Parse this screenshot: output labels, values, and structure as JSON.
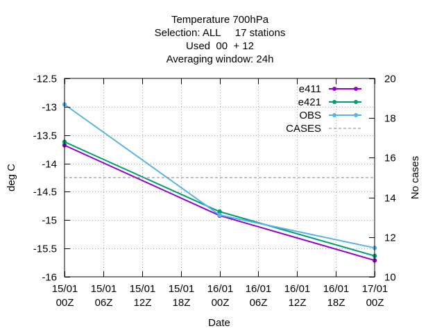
{
  "chart_data": {
    "type": "line",
    "title_lines": [
      "Temperature 700hPa",
      "Selection: ALL     17 stations",
      "Used  00  + 12",
      "Averaging window: 24h"
    ],
    "xlabel": "Date",
    "ylabel": "deg C",
    "y2label": "No cases",
    "x_ticks": [
      {
        "line1": "15/01",
        "line2": "00Z",
        "hours": 0
      },
      {
        "line1": "15/01",
        "line2": "06Z",
        "hours": 6
      },
      {
        "line1": "15/01",
        "line2": "12Z",
        "hours": 12
      },
      {
        "line1": "15/01",
        "line2": "18Z",
        "hours": 18
      },
      {
        "line1": "16/01",
        "line2": "00Z",
        "hours": 24
      },
      {
        "line1": "16/01",
        "line2": "06Z",
        "hours": 30
      },
      {
        "line1": "16/01",
        "line2": "12Z",
        "hours": 36
      },
      {
        "line1": "16/01",
        "line2": "18Z",
        "hours": 42
      },
      {
        "line1": "17/01",
        "line2": "00Z",
        "hours": 48
      }
    ],
    "xlim": [
      0,
      48
    ],
    "ylim": [
      -16,
      -12.5
    ],
    "y_ticks": [
      -12.5,
      -13,
      -13.5,
      -14,
      -14.5,
      -15,
      -15.5,
      -16
    ],
    "y2lim": [
      10,
      20
    ],
    "y2_ticks": [
      20,
      18,
      16,
      14,
      12,
      10
    ],
    "grid": true,
    "legend_position": "top-right",
    "series": [
      {
        "name": "e411",
        "color": "#9400d3",
        "axis": "y",
        "x": [
          0,
          24,
          48
        ],
        "values": [
          -13.68,
          -14.92,
          -15.71
        ]
      },
      {
        "name": "e421",
        "color": "#009e73",
        "axis": "y",
        "x": [
          0,
          24,
          48
        ],
        "values": [
          -13.62,
          -14.85,
          -15.63
        ]
      },
      {
        "name": "OBS",
        "color": "#56b4e9",
        "axis": "y",
        "x": [
          0,
          24,
          48
        ],
        "values": [
          -12.96,
          -14.91,
          -15.49
        ]
      },
      {
        "name": "CASES",
        "color": "#808080",
        "axis": "y2",
        "dashed": true,
        "x": [
          0,
          48
        ],
        "values": [
          15,
          15
        ]
      }
    ]
  }
}
